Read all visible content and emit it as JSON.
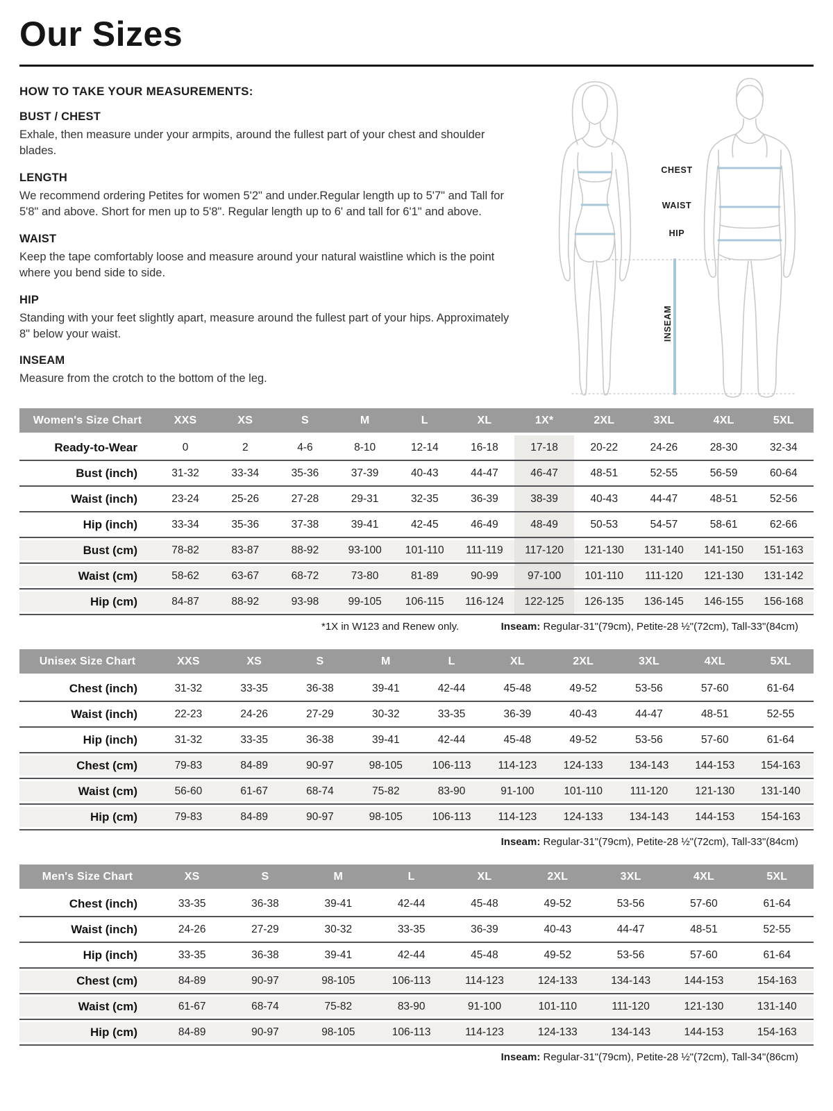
{
  "page": {
    "title": "Our Sizes"
  },
  "how_to": {
    "heading": "HOW TO TAKE YOUR MEASUREMENTS:",
    "sections": [
      {
        "title": "BUST / CHEST",
        "body": "Exhale, then measure under your armpits, around the fullest part of your chest and shoulder blades."
      },
      {
        "title": "LENGTH",
        "body": "We recommend ordering Petites for women 5'2\" and under.Regular length up to 5'7\" and Tall for 5'8\" and above. Short for men up to 5'8\". Regular length up to 6' and tall for 6'1\" and above."
      },
      {
        "title": "WAIST",
        "body": "Keep the tape comfortably loose and measure around your natural waistline which is the point where you bend side to side."
      },
      {
        "title": "HIP",
        "body": "Standing with your feet slightly apart, measure around the fullest part of your hips. Approximately 8\" below your waist."
      },
      {
        "title": "INSEAM",
        "body": "Measure from the crotch to the bottom of the leg."
      }
    ]
  },
  "diagram": {
    "labels": {
      "chest": "CHEST",
      "waist": "WAIST",
      "hip": "HIP",
      "inseam": "INSEAM"
    },
    "measure_line_color": "#a9c7d8",
    "outline_color": "#c9c9c9"
  },
  "tables": [
    {
      "title": "Women's Size Chart",
      "columns": [
        "XXS",
        "XS",
        "S",
        "M",
        "L",
        "XL",
        "1X*",
        "2XL",
        "3XL",
        "4XL",
        "5XL"
      ],
      "highlight_col": 6,
      "rows": [
        {
          "label": "Ready-to-Wear",
          "shaded": false,
          "values": [
            "0",
            "2",
            "4-6",
            "8-10",
            "12-14",
            "16-18",
            "17-18",
            "20-22",
            "24-26",
            "28-30",
            "32-34"
          ]
        },
        {
          "label": "Bust (inch)",
          "shaded": false,
          "values": [
            "31-32",
            "33-34",
            "35-36",
            "37-39",
            "40-43",
            "44-47",
            "46-47",
            "48-51",
            "52-55",
            "56-59",
            "60-64"
          ]
        },
        {
          "label": "Waist (inch)",
          "shaded": false,
          "values": [
            "23-24",
            "25-26",
            "27-28",
            "29-31",
            "32-35",
            "36-39",
            "38-39",
            "40-43",
            "44-47",
            "48-51",
            "52-56"
          ]
        },
        {
          "label": "Hip (inch)",
          "shaded": false,
          "values": [
            "33-34",
            "35-36",
            "37-38",
            "39-41",
            "42-45",
            "46-49",
            "48-49",
            "50-53",
            "54-57",
            "58-61",
            "62-66"
          ]
        },
        {
          "label": "Bust (cm)",
          "shaded": true,
          "values": [
            "78-82",
            "83-87",
            "88-92",
            "93-100",
            "101-110",
            "111-119",
            "117-120",
            "121-130",
            "131-140",
            "141-150",
            "151-163"
          ]
        },
        {
          "label": "Waist (cm)",
          "shaded": true,
          "values": [
            "58-62",
            "63-67",
            "68-72",
            "73-80",
            "81-89",
            "90-99",
            "97-100",
            "101-110",
            "111-120",
            "121-130",
            "131-142"
          ]
        },
        {
          "label": "Hip (cm)",
          "shaded": true,
          "values": [
            "84-87",
            "88-92",
            "93-98",
            "99-105",
            "106-115",
            "116-124",
            "122-125",
            "126-135",
            "136-145",
            "146-155",
            "156-168"
          ]
        }
      ],
      "footnote_left": "*1X in W123 and Renew only.",
      "footnote_bold": "Inseam:",
      "footnote_text": " Regular-31\"(79cm), Petite-28 ½\"(72cm), Tall-33\"(84cm)"
    },
    {
      "title": "Unisex Size Chart",
      "columns": [
        "XXS",
        "XS",
        "S",
        "M",
        "L",
        "XL",
        "2XL",
        "3XL",
        "4XL",
        "5XL"
      ],
      "highlight_col": null,
      "rows": [
        {
          "label": "Chest (inch)",
          "shaded": false,
          "values": [
            "31-32",
            "33-35",
            "36-38",
            "39-41",
            "42-44",
            "45-48",
            "49-52",
            "53-56",
            "57-60",
            "61-64"
          ]
        },
        {
          "label": "Waist (inch)",
          "shaded": false,
          "values": [
            "22-23",
            "24-26",
            "27-29",
            "30-32",
            "33-35",
            "36-39",
            "40-43",
            "44-47",
            "48-51",
            "52-55"
          ]
        },
        {
          "label": "Hip (inch)",
          "shaded": false,
          "values": [
            "31-32",
            "33-35",
            "36-38",
            "39-41",
            "42-44",
            "45-48",
            "49-52",
            "53-56",
            "57-60",
            "61-64"
          ]
        },
        {
          "label": "Chest (cm)",
          "shaded": true,
          "values": [
            "79-83",
            "84-89",
            "90-97",
            "98-105",
            "106-113",
            "114-123",
            "124-133",
            "134-143",
            "144-153",
            "154-163"
          ]
        },
        {
          "label": "Waist (cm)",
          "shaded": true,
          "values": [
            "56-60",
            "61-67",
            "68-74",
            "75-82",
            "83-90",
            "91-100",
            "101-110",
            "111-120",
            "121-130",
            "131-140"
          ]
        },
        {
          "label": "Hip (cm)",
          "shaded": true,
          "values": [
            "79-83",
            "84-89",
            "90-97",
            "98-105",
            "106-113",
            "114-123",
            "124-133",
            "134-143",
            "144-153",
            "154-163"
          ]
        }
      ],
      "footnote_left": null,
      "footnote_bold": "Inseam:",
      "footnote_text": " Regular-31\"(79cm), Petite-28 ½\"(72cm), Tall-33\"(84cm)"
    },
    {
      "title": "Men's Size Chart",
      "columns": [
        "XS",
        "S",
        "M",
        "L",
        "XL",
        "2XL",
        "3XL",
        "4XL",
        "5XL"
      ],
      "highlight_col": null,
      "rows": [
        {
          "label": "Chest (inch)",
          "shaded": false,
          "values": [
            "33-35",
            "36-38",
            "39-41",
            "42-44",
            "45-48",
            "49-52",
            "53-56",
            "57-60",
            "61-64"
          ]
        },
        {
          "label": "Waist (inch)",
          "shaded": false,
          "values": [
            "24-26",
            "27-29",
            "30-32",
            "33-35",
            "36-39",
            "40-43",
            "44-47",
            "48-51",
            "52-55"
          ]
        },
        {
          "label": "Hip (inch)",
          "shaded": false,
          "values": [
            "33-35",
            "36-38",
            "39-41",
            "42-44",
            "45-48",
            "49-52",
            "53-56",
            "57-60",
            "61-64"
          ]
        },
        {
          "label": "Chest (cm)",
          "shaded": true,
          "values": [
            "84-89",
            "90-97",
            "98-105",
            "106-113",
            "114-123",
            "124-133",
            "134-143",
            "144-153",
            "154-163"
          ]
        },
        {
          "label": "Waist (cm)",
          "shaded": true,
          "values": [
            "61-67",
            "68-74",
            "75-82",
            "83-90",
            "91-100",
            "101-110",
            "111-120",
            "121-130",
            "131-140"
          ]
        },
        {
          "label": "Hip (cm)",
          "shaded": true,
          "values": [
            "84-89",
            "90-97",
            "98-105",
            "106-113",
            "114-123",
            "124-133",
            "134-143",
            "144-153",
            "154-163"
          ]
        }
      ],
      "footnote_left": null,
      "footnote_bold": "Inseam:",
      "footnote_text": " Regular-31\"(79cm), Petite-28 ½\"(72cm), Tall-34\"(86cm)"
    }
  ]
}
